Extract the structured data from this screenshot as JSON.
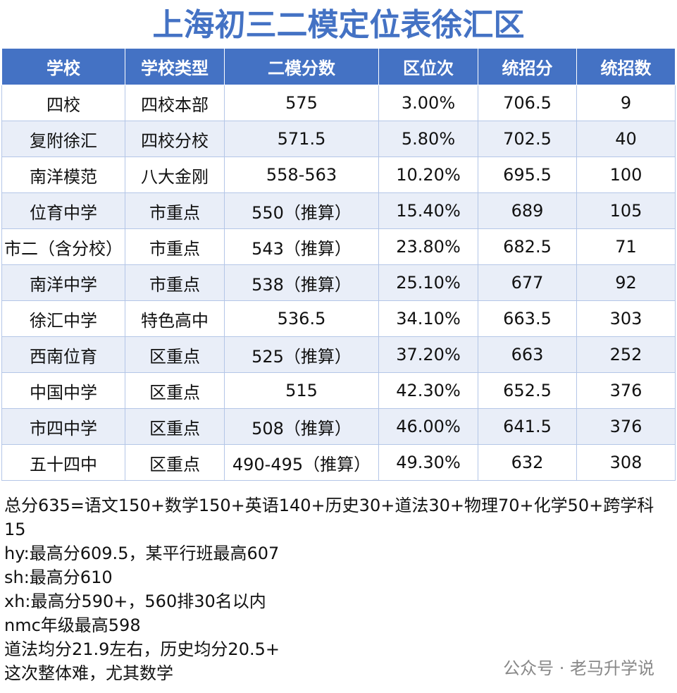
{
  "title": "上海初三二模定位表徐汇区",
  "table": {
    "columns": [
      "学校",
      "学校类型",
      "二模分数",
      "区位次",
      "统招分",
      "统招数"
    ],
    "rows": [
      [
        "四校",
        "四校本部",
        "575",
        "3.00%",
        "706.5",
        "9"
      ],
      [
        "复附徐汇",
        "四校分校",
        "571.5",
        "5.80%",
        "702.5",
        "40"
      ],
      [
        "南洋模范",
        "八大金刚",
        "558-563",
        "10.20%",
        "695.5",
        "100"
      ],
      [
        "位育中学",
        "市重点",
        "550（推算）",
        "15.40%",
        "689",
        "105"
      ],
      [
        "市二（含分校）",
        "市重点",
        "543（推算）",
        "23.80%",
        "682.5",
        "71"
      ],
      [
        "南洋中学",
        "市重点",
        "538（推算）",
        "25.10%",
        "677",
        "92"
      ],
      [
        "徐汇中学",
        "特色高中",
        "536.5",
        "34.10%",
        "663.5",
        "303"
      ],
      [
        "西南位育",
        "区重点",
        "525（推算）",
        "37.20%",
        "663",
        "252"
      ],
      [
        "中国中学",
        "区重点",
        "515",
        "42.30%",
        "652.5",
        "376"
      ],
      [
        "市四中学",
        "区重点",
        "508（推算）",
        "46.00%",
        "641.5",
        "376"
      ],
      [
        "五十四中",
        "区重点",
        "490-495（推算）",
        "49.30%",
        "632",
        "308"
      ]
    ]
  },
  "notes": [
    "总分635=语文150+数学150+英语140+历史30+道法30+物理70+化学50+跨学科15",
    "hy:最高分609.5，某平行班最高607",
    "sh:最高分610",
    "xh:最高分590+，560排30名以内",
    "nmc年级最高598",
    "道法均分21.9左右，历史均分20.5+",
    "这次整体难，尤其数学"
  ],
  "watermark": "公众号 · 老马升学说"
}
